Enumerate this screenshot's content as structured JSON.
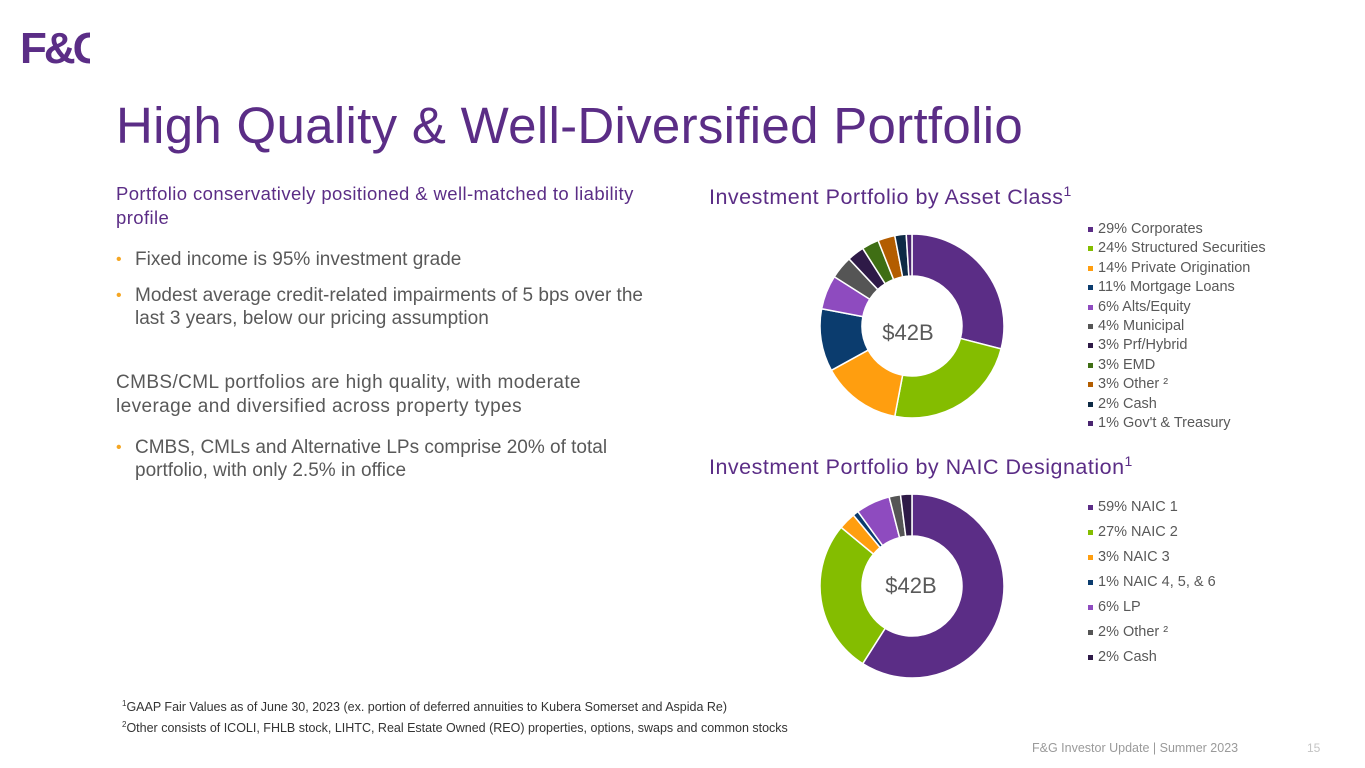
{
  "logo": {
    "text": "F&G",
    "primary_color": "#5b2d86",
    "secondary_color": "#fdc300"
  },
  "title": "High Quality & Well-Diversified Portfolio",
  "left": {
    "section1_heading": "Portfolio conservatively positioned & well-matched to liability profile",
    "section1_bullets": [
      "Fixed income is 95% investment grade",
      "Modest average credit-related impairments of 5 bps over the last 3 years, below our pricing assumption"
    ],
    "section2_heading": "CMBS/CML portfolios are high quality, with moderate leverage and diversified across property types",
    "section2_bullets": [
      "CMBS, CMLs and Alternative LPs comprise 20% of total portfolio, with only 2.5% in office"
    ]
  },
  "chart_data": [
    {
      "type": "pie",
      "title": "Investment Portfolio by Asset Class",
      "title_sup": "1",
      "center_label": "$42B",
      "legend_position": "right",
      "slices": [
        {
          "label": "29% Corporates",
          "value": 29,
          "color": "#5b2d86"
        },
        {
          "label": "24% Structured Securities",
          "value": 24,
          "color": "#84bd00"
        },
        {
          "label": "14% Private Origination",
          "value": 14,
          "color": "#ff9e0f"
        },
        {
          "label": "11% Mortgage Loans",
          "value": 11,
          "color": "#0b3c6e"
        },
        {
          "label": "6% Alts/Equity",
          "value": 6,
          "color": "#8e4bbf"
        },
        {
          "label": "4% Municipal",
          "value": 4,
          "color": "#555555"
        },
        {
          "label": "3% Prf/Hybrid",
          "value": 3,
          "color": "#2e1a47"
        },
        {
          "label": "3% EMD",
          "value": 3,
          "color": "#3f6e14"
        },
        {
          "label": "3% Other ²",
          "value": 3,
          "color": "#b35d00"
        },
        {
          "label": "2% Cash",
          "value": 2,
          "color": "#0d2a45"
        },
        {
          "label": "1% Gov't & Treasury",
          "value": 1,
          "color": "#4a2570"
        }
      ]
    },
    {
      "type": "pie",
      "title": "Investment Portfolio by NAIC Designation",
      "title_sup": "1",
      "center_label": "$42B",
      "legend_position": "right",
      "slices": [
        {
          "label": "59% NAIC 1",
          "value": 59,
          "color": "#5b2d86"
        },
        {
          "label": "27% NAIC 2",
          "value": 27,
          "color": "#84bd00"
        },
        {
          "label": "3% NAIC 3",
          "value": 3,
          "color": "#ff9e0f"
        },
        {
          "label": "1% NAIC 4, 5, & 6",
          "value": 1,
          "color": "#0b3c6e"
        },
        {
          "label": "6% LP",
          "value": 6,
          "color": "#8e4bbf"
        },
        {
          "label": "2% Other ²",
          "value": 2,
          "color": "#555555"
        },
        {
          "label": "2% Cash",
          "value": 2,
          "color": "#2e1a47"
        }
      ]
    }
  ],
  "footnotes": {
    "n1_sup": "1",
    "n1_text": "GAAP Fair Values as of June 30, 2023 (ex. portion of deferred annuities to Kubera Somerset and Aspida Re)",
    "n2_sup": "2",
    "n2_text": "Other consists of ICOLI, FHLB stock, LIHTC, Real Estate Owned (REO) properties, options, swaps and common stocks"
  },
  "footer": {
    "text": "F&G Investor Update | Summer 2023",
    "page": "15"
  }
}
